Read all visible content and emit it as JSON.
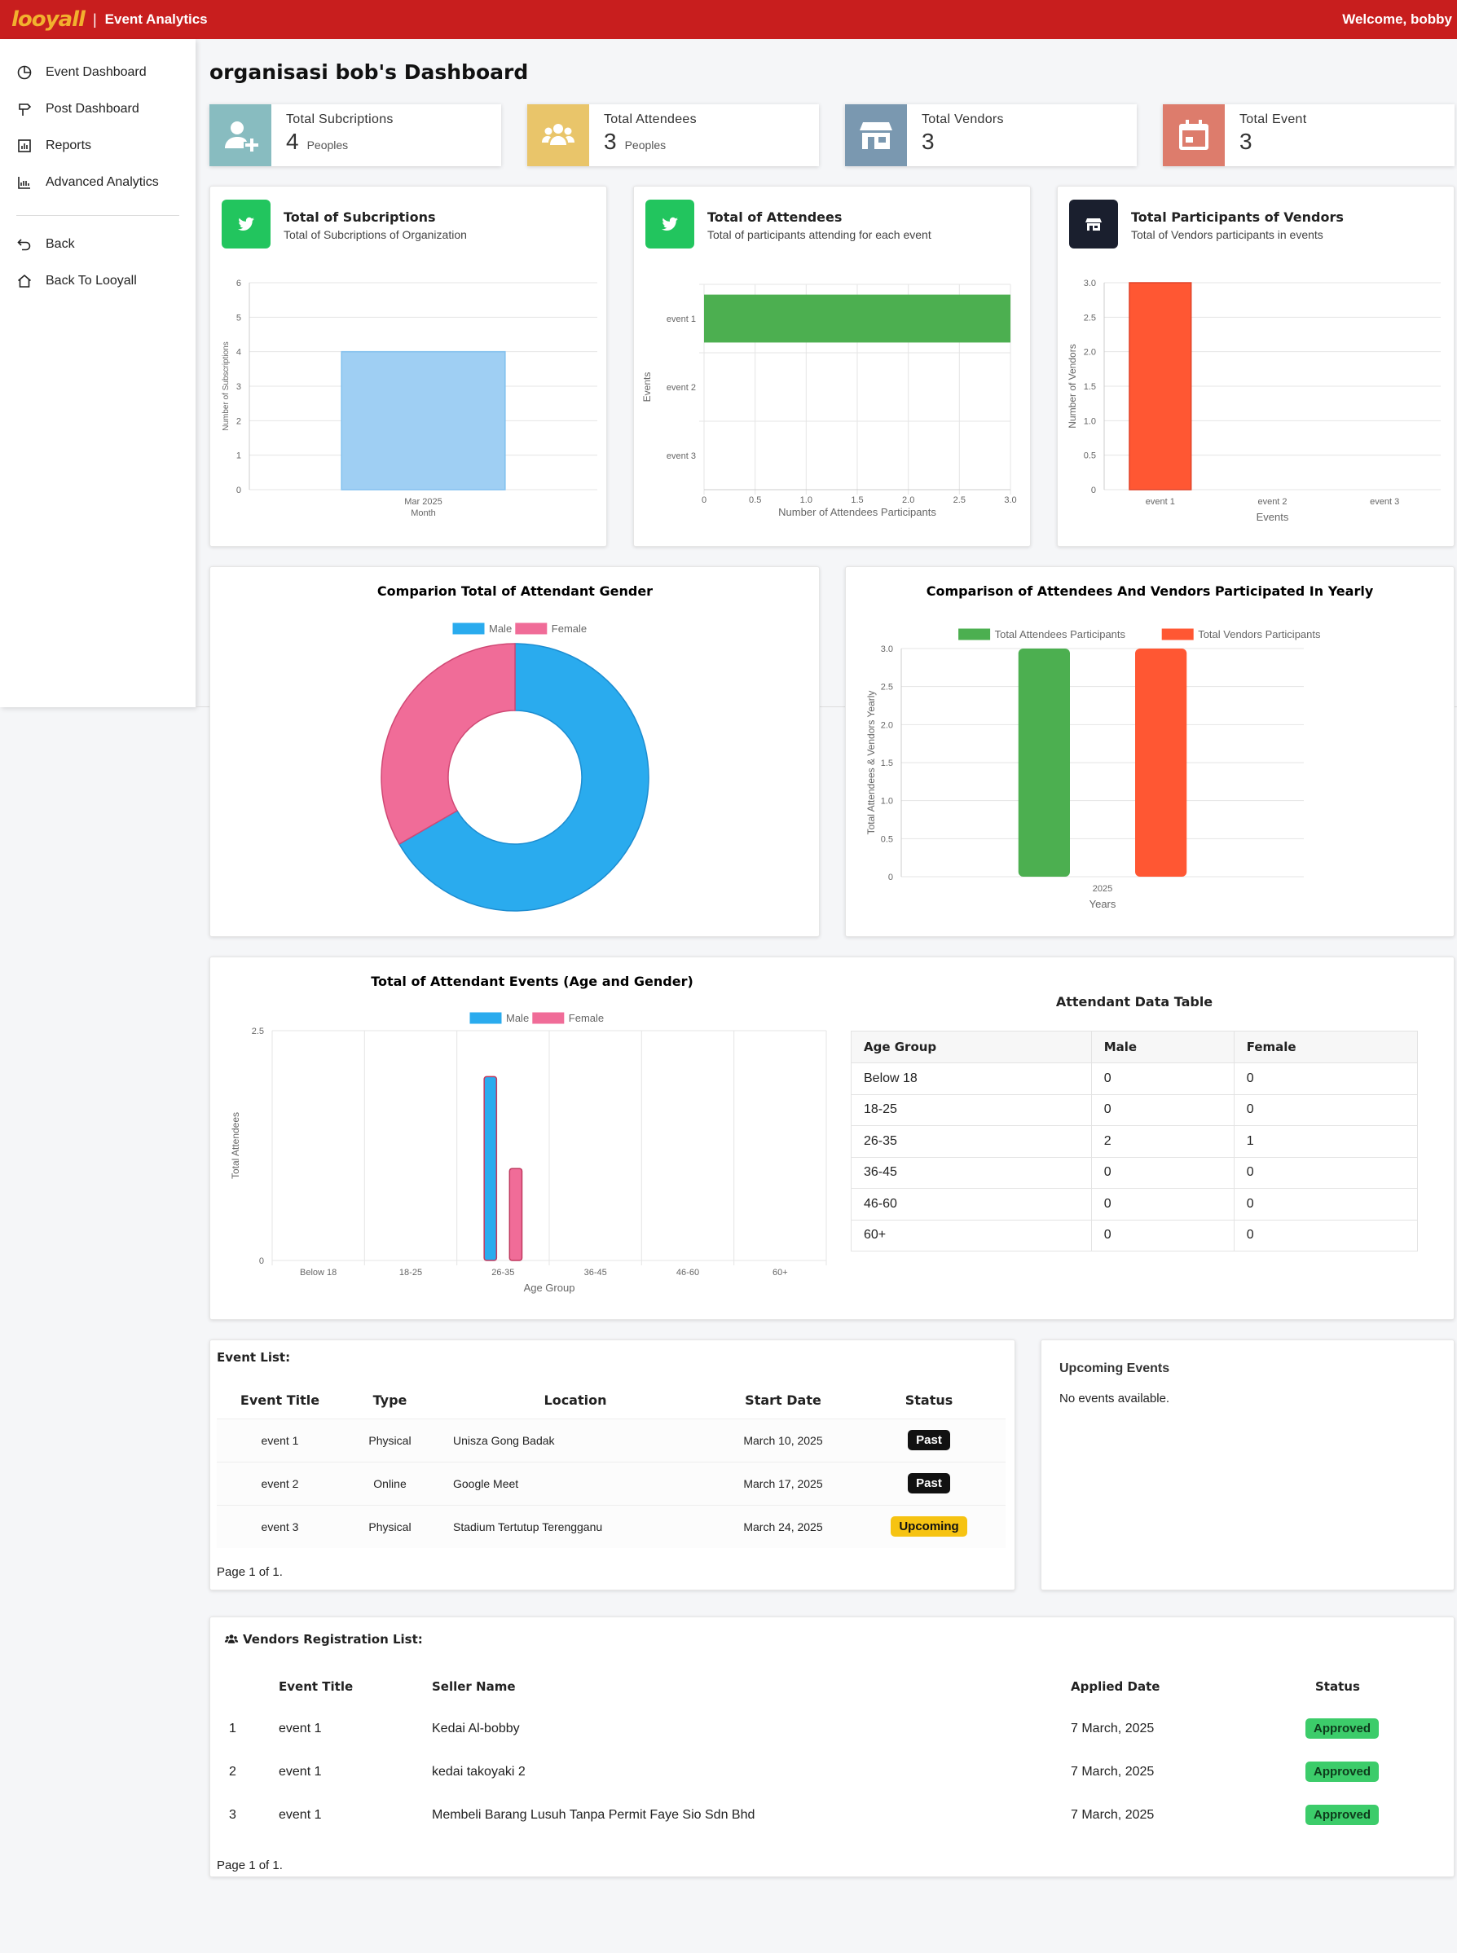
{
  "header": {
    "logo": "looyall",
    "section": "Event Analytics",
    "welcome": "Welcome, bobby"
  },
  "sidebar": {
    "items": [
      {
        "label": "Event Dashboard",
        "icon": "clock-pie-icon"
      },
      {
        "label": "Post Dashboard",
        "icon": "signpost-icon"
      },
      {
        "label": "Reports",
        "icon": "report-chart-icon"
      },
      {
        "label": "Advanced Analytics",
        "icon": "analytics-chart-icon"
      }
    ],
    "back": {
      "label": "Back",
      "icon": "undo-arrow-icon"
    },
    "home": {
      "label": "Back To Looyall",
      "icon": "home-icon"
    }
  },
  "page": {
    "title": "organisasi bob's Dashboard"
  },
  "stats": [
    {
      "label": "Total Subcriptions",
      "value": "4",
      "unit": "Peoples",
      "icon": "add-user-icon",
      "color": "#88bcc0"
    },
    {
      "label": "Total Attendees",
      "value": "3",
      "unit": "Peoples",
      "icon": "users-icon",
      "color": "#e9c56a"
    },
    {
      "label": "Total Vendors",
      "value": "3",
      "unit": "",
      "icon": "store-icon",
      "color": "#7a98b0"
    },
    {
      "label": "Total Event",
      "value": "3",
      "unit": "",
      "icon": "calendar-icon",
      "color": "#dd7c6c"
    }
  ],
  "charts": {
    "subs": {
      "title": "Total of Subcriptions",
      "subtitle": "Total of Subcriptions of Organization",
      "icon": "twitter-bird-icon",
      "icon_color": "#22c55e"
    },
    "att": {
      "title": "Total of Attendees",
      "subtitle": "Total of participants attending for each event",
      "icon": "twitter-bird-icon",
      "icon_color": "#22c55e"
    },
    "ven": {
      "title": "Total Participants of Vendors",
      "subtitle": "Total of Vendors participants in events",
      "icon": "store-icon",
      "icon_color": "#1a1f2e"
    },
    "gender": {
      "title": "Comparion Total of Attendant Gender"
    },
    "yearly": {
      "title": "Comparison of Attendees And Vendors Participated In Yearly"
    },
    "age": {
      "title": "Total of Attendant Events (Age and Gender)"
    }
  },
  "chart_data": [
    {
      "type": "bar",
      "id": "subs",
      "categories": [
        "Mar 2025"
      ],
      "values": [
        4
      ],
      "xlabel": "Month",
      "ylabel": "Number of Subscriptions",
      "ylim": [
        0,
        6
      ],
      "yticks": [
        "0",
        "1",
        "2",
        "3",
        "4",
        "5",
        "6"
      ],
      "color": "#9fcff3",
      "grid": true
    },
    {
      "type": "bar",
      "id": "att",
      "orientation": "horizontal",
      "categories": [
        "event 1",
        "event 2",
        "event 3"
      ],
      "values": [
        3,
        0,
        0
      ],
      "xlabel": "Number of Attendees Participants",
      "ylabel": "Events",
      "xlim": [
        0,
        3
      ],
      "xticks": [
        "0",
        "0.5",
        "1.0",
        "1.5",
        "2.0",
        "2.5",
        "3.0"
      ],
      "color": "#4caf50",
      "grid": true
    },
    {
      "type": "bar",
      "id": "ven",
      "categories": [
        "event 1",
        "event 2",
        "event 3"
      ],
      "values": [
        3,
        0,
        0
      ],
      "xlabel": "Events",
      "ylabel": "Number of Vendors",
      "ylim": [
        0,
        3
      ],
      "yticks": [
        "0",
        "0.5",
        "1.0",
        "1.5",
        "2.0",
        "2.5",
        "3.0"
      ],
      "color": "#ff5733",
      "grid": true
    },
    {
      "type": "pie",
      "id": "gender",
      "categories": [
        "Male",
        "Female"
      ],
      "values": [
        2,
        1
      ],
      "colors": [
        "#2aabee",
        "#f06c98"
      ],
      "legend": "top"
    },
    {
      "type": "bar",
      "id": "yearly",
      "categories": [
        "2025"
      ],
      "series": [
        {
          "name": "Total Attendees Participants",
          "values": [
            3
          ],
          "color": "#4caf50"
        },
        {
          "name": "Total Vendors Participants",
          "values": [
            3
          ],
          "color": "#ff5733"
        }
      ],
      "xlabel": "Years",
      "ylabel": "Total Attendees & Vendors Yearly",
      "ylim": [
        0,
        3
      ],
      "yticks": [
        "0",
        "0.5",
        "1.0",
        "1.5",
        "2.0",
        "2.5",
        "3.0"
      ],
      "legend": "top"
    },
    {
      "type": "bar",
      "id": "age",
      "categories": [
        "Below 18",
        "18-25",
        "26-35",
        "36-45",
        "46-60",
        "60+"
      ],
      "series": [
        {
          "name": "Male",
          "values": [
            0,
            0,
            2,
            0,
            0,
            0
          ],
          "color": "#2aabee"
        },
        {
          "name": "Female",
          "values": [
            0,
            0,
            1,
            0,
            0,
            0
          ],
          "color": "#f06c98"
        }
      ],
      "xlabel": "Age Group",
      "ylabel": "Total Attendees",
      "ylim": [
        0,
        2.5
      ],
      "yticks": [
        "0",
        "2.5"
      ],
      "legend": "top"
    }
  ],
  "age_table": {
    "title": "Attendant Data Table",
    "headers": [
      "Age Group",
      "Male",
      "Female"
    ],
    "rows": [
      [
        "Below 18",
        "0",
        "0"
      ],
      [
        "18-25",
        "0",
        "0"
      ],
      [
        "26-35",
        "2",
        "1"
      ],
      [
        "36-45",
        "0",
        "0"
      ],
      [
        "46-60",
        "0",
        "0"
      ],
      [
        "60+",
        "0",
        "0"
      ]
    ]
  },
  "event_list": {
    "title": "Event List:",
    "headers": [
      "Event Title",
      "Type",
      "Location",
      "Start Date",
      "Status"
    ],
    "rows": [
      {
        "title": "event 1",
        "type": "Physical",
        "location": "Unisza Gong Badak",
        "date": "March 10, 2025",
        "status": "Past"
      },
      {
        "title": "event 2",
        "type": "Online",
        "location": "Google Meet",
        "date": "March 17, 2025",
        "status": "Past"
      },
      {
        "title": "event 3",
        "type": "Physical",
        "location": "Stadium Tertutup Terengganu",
        "date": "March 24, 2025",
        "status": "Upcoming"
      }
    ],
    "page_info": "Page 1 of 1."
  },
  "upcoming": {
    "title": "Upcoming Events",
    "empty": "No events available."
  },
  "vendors": {
    "title": "Vendors Registration List:",
    "icon": "users-icon",
    "headers": [
      "",
      "Event Title",
      "Seller Name",
      "Applied Date",
      "Status"
    ],
    "rows": [
      {
        "no": "1",
        "event": "event 1",
        "seller": "Kedai Al-bobby",
        "date": "7 March, 2025",
        "status": "Approved"
      },
      {
        "no": "2",
        "event": "event 1",
        "seller": "kedai takoyaki 2",
        "date": "7 March, 2025",
        "status": "Approved"
      },
      {
        "no": "3",
        "event": "event 1",
        "seller": "Membeli Barang Lusuh Tanpa Permit Faye Sio Sdn Bhd",
        "date": "7 March, 2025",
        "status": "Approved"
      }
    ],
    "page_info": "Page 1 of 1."
  }
}
